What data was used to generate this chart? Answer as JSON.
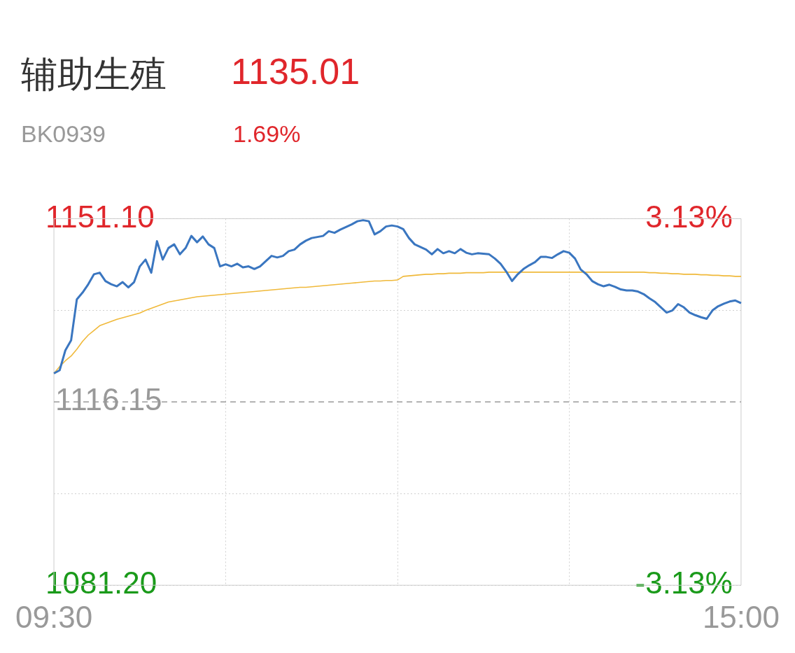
{
  "chart_data": {
    "type": "line",
    "title": "辅助生殖",
    "subtitle": "BK0939",
    "annotations": [
      "1135.01",
      "1.69%"
    ],
    "categories": [
      "09:30",
      null,
      null,
      null,
      null,
      null,
      null,
      null,
      null,
      null,
      null,
      null,
      null,
      null,
      null,
      null,
      null,
      null,
      null,
      null,
      null,
      null,
      null,
      null,
      null,
      null,
      null,
      null,
      null,
      null,
      null,
      null,
      null,
      null,
      null,
      null,
      null,
      null,
      null,
      null,
      null,
      null,
      null,
      null,
      null,
      null,
      null,
      null,
      null,
      null,
      null,
      null,
      null,
      null,
      null,
      null,
      null,
      null,
      null,
      null,
      null,
      null,
      null,
      null,
      null,
      null,
      null,
      null,
      null,
      null,
      null,
      null,
      null,
      null,
      null,
      null,
      null,
      null,
      null,
      null,
      null,
      null,
      null,
      null,
      null,
      null,
      null,
      null,
      null,
      null,
      null,
      null,
      null,
      null,
      null,
      null,
      null,
      null,
      null,
      null,
      null,
      null,
      null,
      null,
      null,
      null,
      null,
      null,
      null,
      null,
      null,
      null,
      null,
      null,
      null,
      null,
      null,
      null,
      null,
      null,
      "15:00"
    ],
    "ylim": [
      1081.2,
      1151.1
    ],
    "yticks": [
      {
        "value": 1081.2,
        "label": "1081.20"
      },
      {
        "value": 1098.675,
        "label": null
      },
      {
        "value": 1133.625,
        "label": null
      },
      {
        "value": 1151.1,
        "label": "1151.10"
      }
    ],
    "y2lim": [
      -3.13,
      3.13
    ],
    "y2ticks": [
      {
        "value": -3.13,
        "label": "-3.13%"
      },
      {
        "value": 3.13,
        "label": "3.13%"
      }
    ],
    "grid": true,
    "ref_lines": [
      {
        "axis": "y",
        "value": 1116.15,
        "label": "1116.15",
        "color": "#999999",
        "line_style": "dashed"
      }
    ],
    "series": [
      {
        "color": "#3a76c0",
        "values": [
          1121.6,
          1122.2,
          1126.0,
          1127.9,
          1135.7,
          1137.0,
          1138.6,
          1140.5,
          1140.8,
          1139.2,
          1138.6,
          1138.2,
          1139.0,
          1138.0,
          1139.0,
          1142.0,
          1143.3,
          1140.8,
          1146.8,
          1143.3,
          1145.5,
          1146.2,
          1144.3,
          1145.5,
          1147.8,
          1146.6,
          1147.7,
          1146.2,
          1145.5,
          1142.0,
          1142.4,
          1142.0,
          1142.5,
          1141.8,
          1142.0,
          1141.5,
          1142.0,
          1143.0,
          1144.0,
          1143.7,
          1144.0,
          1144.9,
          1145.2,
          1146.2,
          1146.9,
          1147.4,
          1147.6,
          1147.8,
          1148.7,
          1148.4,
          1149.0,
          1149.5,
          1150.0,
          1150.6,
          1150.8,
          1150.6,
          1148.1,
          1148.7,
          1149.6,
          1149.8,
          1149.6,
          1149.1,
          1147.4,
          1146.2,
          1145.7,
          1145.2,
          1144.3,
          1145.3,
          1144.5,
          1144.9,
          1144.5,
          1145.3,
          1144.6,
          1144.3,
          1144.5,
          1144.4,
          1144.3,
          1143.5,
          1142.5,
          1141.0,
          1139.2,
          1140.5,
          1141.5,
          1142.2,
          1142.8,
          1143.8,
          1143.8,
          1143.6,
          1144.3,
          1144.9,
          1144.6,
          1143.5,
          1141.4,
          1140.5,
          1139.2,
          1138.6,
          1138.2,
          1138.5,
          1138.1,
          1137.6,
          1137.4,
          1137.4,
          1137.2,
          1136.7,
          1135.9,
          1135.2,
          1134.2,
          1133.2,
          1133.6,
          1134.8,
          1134.2,
          1133.2,
          1132.7,
          1132.3,
          1132.0,
          1133.6,
          1134.4,
          1134.9,
          1135.3,
          1135.5,
          1135.0
        ]
      },
      {
        "color": "#f0b93a",
        "values": [
          1121.6,
          1122.9,
          1124.0,
          1124.9,
          1126.2,
          1127.7,
          1128.9,
          1129.8,
          1130.7,
          1131.1,
          1131.5,
          1131.9,
          1132.2,
          1132.5,
          1132.8,
          1133.1,
          1133.6,
          1134.0,
          1134.4,
          1134.8,
          1135.2,
          1135.4,
          1135.6,
          1135.8,
          1136.0,
          1136.2,
          1136.3,
          1136.4,
          1136.5,
          1136.6,
          1136.7,
          1136.8,
          1136.9,
          1137.0,
          1137.1,
          1137.2,
          1137.3,
          1137.4,
          1137.5,
          1137.6,
          1137.7,
          1137.8,
          1137.9,
          1138.0,
          1138.0,
          1138.1,
          1138.2,
          1138.3,
          1138.4,
          1138.5,
          1138.6,
          1138.7,
          1138.8,
          1138.9,
          1139.0,
          1139.1,
          1139.2,
          1139.2,
          1139.3,
          1139.3,
          1139.4,
          1140.1,
          1140.2,
          1140.3,
          1140.4,
          1140.5,
          1140.5,
          1140.6,
          1140.6,
          1140.7,
          1140.7,
          1140.7,
          1140.8,
          1140.8,
          1140.8,
          1140.8,
          1140.9,
          1140.9,
          1140.9,
          1140.9,
          1140.9,
          1140.9,
          1140.9,
          1140.9,
          1140.9,
          1140.9,
          1140.9,
          1140.9,
          1140.9,
          1140.9,
          1140.9,
          1140.9,
          1140.9,
          1140.9,
          1140.9,
          1140.9,
          1140.9,
          1140.9,
          1140.9,
          1140.9,
          1140.9,
          1140.9,
          1140.9,
          1140.9,
          1140.8,
          1140.8,
          1140.7,
          1140.7,
          1140.6,
          1140.6,
          1140.5,
          1140.5,
          1140.5,
          1140.4,
          1140.4,
          1140.3,
          1140.3,
          1140.2,
          1140.2,
          1140.1,
          1140.1
        ]
      }
    ]
  }
}
